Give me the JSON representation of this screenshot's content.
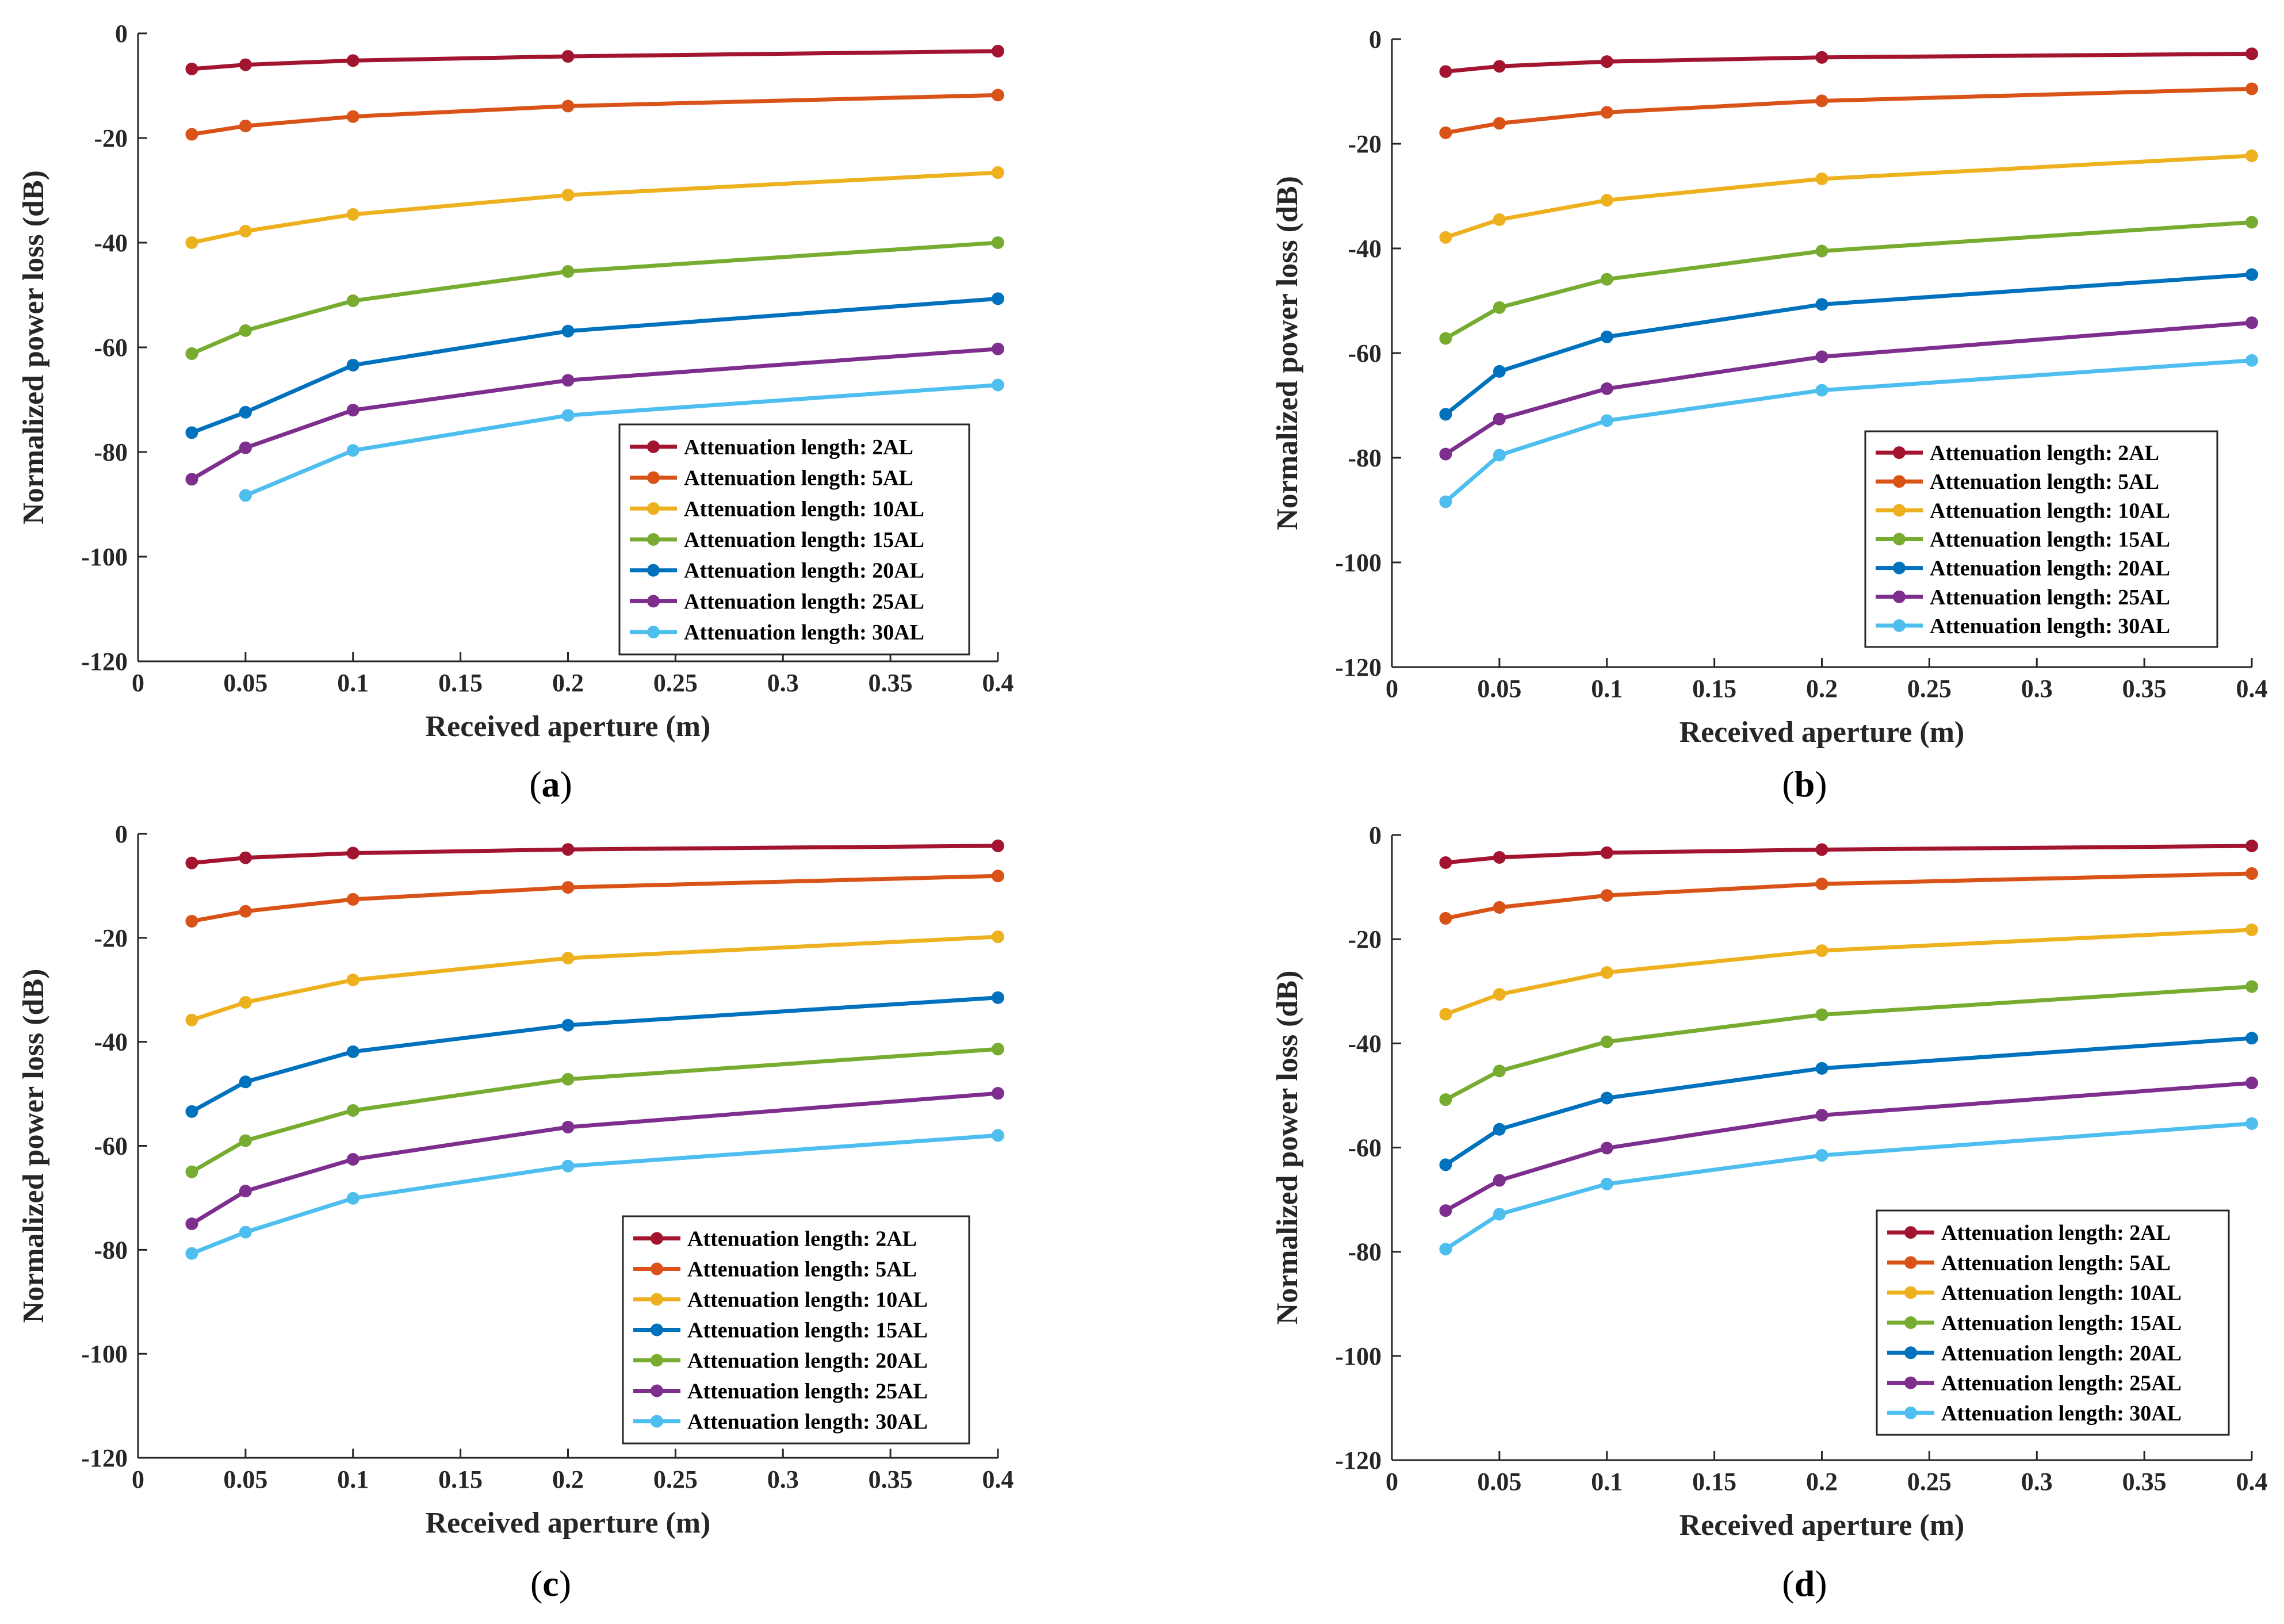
{
  "figure": {
    "colors": {
      "series": [
        "#A2142F",
        "#D95319",
        "#EDB120",
        "#77AC30",
        "#0072BD",
        "#7E2F8E",
        "#4DBEEE"
      ]
    }
  },
  "chart_data": [
    {
      "type": "line",
      "panel_label": "a",
      "xlabel": "Received aperture (m)",
      "ylabel": "Normalized power loss (dB)",
      "xlim": [
        0,
        0.4
      ],
      "ylim": [
        -120,
        0
      ],
      "xticks": [
        "0",
        "0.05",
        "0.1",
        "0.15",
        "0.2",
        "0.25",
        "0.3",
        "0.35",
        "0.4"
      ],
      "yticks": [
        "0",
        "-20",
        "-40",
        "-60",
        "-80",
        "-100",
        "-120"
      ],
      "legend_position": "bottom-right",
      "grid": false,
      "series": [
        {
          "name": "Attenuation length: 2AL",
          "color": "#A2142F",
          "x": [
            0.025,
            0.05,
            0.1,
            0.2,
            0.4
          ],
          "y": [
            -6.8,
            -6.0,
            -5.2,
            -4.4,
            -3.4
          ]
        },
        {
          "name": "Attenuation length: 5AL",
          "color": "#D95319",
          "x": [
            0.025,
            0.05,
            0.1,
            0.2,
            0.4
          ],
          "y": [
            -19.3,
            -17.7,
            -15.9,
            -13.9,
            -11.8
          ]
        },
        {
          "name": "Attenuation length: 10AL",
          "color": "#EDB120",
          "x": [
            0.025,
            0.05,
            0.1,
            0.2,
            0.4
          ],
          "y": [
            -40.0,
            -37.8,
            -34.6,
            -30.9,
            -26.6
          ]
        },
        {
          "name": "Attenuation length: 15AL",
          "color": "#77AC30",
          "x": [
            0.025,
            0.05,
            0.1,
            0.2,
            0.4
          ],
          "y": [
            -61.2,
            -56.8,
            -51.1,
            -45.5,
            -40.0
          ]
        },
        {
          "name": "Attenuation length: 20AL",
          "color": "#0072BD",
          "x": [
            0.025,
            0.05,
            0.1,
            0.2,
            0.4
          ],
          "y": [
            -76.3,
            -72.4,
            -63.4,
            -56.9,
            -50.7
          ]
        },
        {
          "name": "Attenuation length: 25AL",
          "color": "#7E2F8E",
          "x": [
            0.025,
            0.05,
            0.1,
            0.2,
            0.4
          ],
          "y": [
            -85.2,
            -79.2,
            -72.0,
            -66.3,
            -60.3
          ]
        },
        {
          "name": "Attenuation length: 30AL",
          "color": "#4DBEEE",
          "x": [
            0.05,
            0.1,
            0.2,
            0.4
          ],
          "y": [
            -88.3,
            -79.7,
            -73.0,
            -67.2
          ]
        }
      ]
    },
    {
      "type": "line",
      "panel_label": "b",
      "xlabel": "Received aperture (m)",
      "ylabel": "Normalized power loss (dB)",
      "xlim": [
        0,
        0.4
      ],
      "ylim": [
        -120,
        0
      ],
      "xticks": [
        "0",
        "0.05",
        "0.1",
        "0.15",
        "0.2",
        "0.25",
        "0.3",
        "0.35",
        "0.4"
      ],
      "yticks": [
        "0",
        "-20",
        "-40",
        "-60",
        "-80",
        "-100",
        "-120"
      ],
      "legend_position": "bottom-right",
      "grid": false,
      "series": [
        {
          "name": "Attenuation length: 2AL",
          "color": "#A2142F",
          "x": [
            0.025,
            0.05,
            0.1,
            0.2,
            0.4
          ],
          "y": [
            -6.2,
            -5.2,
            -4.3,
            -3.5,
            -2.8
          ]
        },
        {
          "name": "Attenuation length: 5AL",
          "color": "#D95319",
          "x": [
            0.025,
            0.05,
            0.1,
            0.2,
            0.4
          ],
          "y": [
            -17.9,
            -16.1,
            -14.0,
            -11.8,
            -9.5
          ]
        },
        {
          "name": "Attenuation length: 10AL",
          "color": "#EDB120",
          "x": [
            0.025,
            0.05,
            0.1,
            0.2,
            0.4
          ],
          "y": [
            -37.9,
            -34.5,
            -30.8,
            -26.7,
            -22.3
          ]
        },
        {
          "name": "Attenuation length: 15AL",
          "color": "#77AC30",
          "x": [
            0.025,
            0.05,
            0.1,
            0.2,
            0.4
          ],
          "y": [
            -57.2,
            -51.3,
            -45.9,
            -40.5,
            -35.0
          ]
        },
        {
          "name": "Attenuation length: 20AL",
          "color": "#0072BD",
          "x": [
            0.025,
            0.05,
            0.1,
            0.2,
            0.4
          ],
          "y": [
            -71.7,
            -63.5,
            -56.9,
            -50.7,
            -45.0
          ]
        },
        {
          "name": "Attenuation length: 25AL",
          "color": "#7E2F8E",
          "x": [
            0.025,
            0.05,
            0.1,
            0.2,
            0.4
          ],
          "y": [
            -79.3,
            -72.6,
            -66.8,
            -60.7,
            -54.2
          ]
        },
        {
          "name": "Attenuation length: 30AL",
          "color": "#4DBEEE",
          "x": [
            0.025,
            0.05,
            0.1,
            0.2,
            0.4
          ],
          "y": [
            -88.4,
            -79.5,
            -72.9,
            -67.1,
            -61.4
          ]
        }
      ]
    },
    {
      "type": "line",
      "panel_label": "c",
      "xlabel": "Received aperture (m)",
      "ylabel": "Normalized power loss (dB)",
      "xlim": [
        0,
        0.4
      ],
      "ylim": [
        -120,
        0
      ],
      "xticks": [
        "0",
        "0.05",
        "0.1",
        "0.15",
        "0.2",
        "0.25",
        "0.3",
        "0.35",
        "0.4"
      ],
      "yticks": [
        "0",
        "-20",
        "-40",
        "-60",
        "-80",
        "-100",
        "-120"
      ],
      "legend_position": "bottom-right",
      "grid": false,
      "series": [
        {
          "name": "Attenuation length: 2AL",
          "color": "#A2142F",
          "x": [
            0.025,
            0.05,
            0.1,
            0.2,
            0.4
          ],
          "y": [
            -5.6,
            -4.6,
            -3.7,
            -3.0,
            -2.3
          ]
        },
        {
          "name": "Attenuation length: 5AL",
          "color": "#D95319",
          "x": [
            0.025,
            0.05,
            0.1,
            0.2,
            0.4
          ],
          "y": [
            -16.8,
            -14.9,
            -12.6,
            -10.3,
            -8.1
          ]
        },
        {
          "name": "Attenuation length: 10AL",
          "color": "#EDB120",
          "x": [
            0.025,
            0.05,
            0.1,
            0.2,
            0.4
          ],
          "y": [
            -35.8,
            -32.4,
            -28.1,
            -23.9,
            -19.8
          ]
        },
        {
          "name": "Attenuation length: 15AL",
          "color": "#0072BD",
          "x": [
            0.025,
            0.05,
            0.1,
            0.2,
            0.4
          ],
          "y": [
            -53.4,
            -47.7,
            -41.9,
            -36.8,
            -31.5
          ]
        },
        {
          "name": "Attenuation length: 20AL",
          "color": "#77AC30",
          "x": [
            0.025,
            0.05,
            0.1,
            0.2,
            0.4
          ],
          "y": [
            -65.0,
            -59.0,
            -53.2,
            -47.2,
            -41.4
          ]
        },
        {
          "name": "Attenuation length: 25AL",
          "color": "#7E2F8E",
          "x": [
            0.025,
            0.05,
            0.1,
            0.2,
            0.4
          ],
          "y": [
            -75.0,
            -68.7,
            -62.6,
            -56.4,
            -49.9
          ]
        },
        {
          "name": "Attenuation length: 30AL",
          "color": "#4DBEEE",
          "x": [
            0.025,
            0.05,
            0.1,
            0.2,
            0.4
          ],
          "y": [
            -80.7,
            -76.6,
            -70.1,
            -63.9,
            -58.0
          ]
        }
      ]
    },
    {
      "type": "line",
      "panel_label": "d",
      "xlabel": "Received aperture (m)",
      "ylabel": "Normalized power loss (dB)",
      "xlim": [
        0,
        0.4
      ],
      "ylim": [
        -120,
        0
      ],
      "xticks": [
        "0",
        "0.05",
        "0.1",
        "0.15",
        "0.2",
        "0.25",
        "0.3",
        "0.35",
        "0.4"
      ],
      "yticks": [
        "0",
        "-20",
        "-40",
        "-60",
        "-80",
        "-100",
        "-120"
      ],
      "legend_position": "bottom-right",
      "grid": false,
      "series": [
        {
          "name": "Attenuation length: 2AL",
          "color": "#A2142F",
          "x": [
            0.025,
            0.05,
            0.1,
            0.2,
            0.4
          ],
          "y": [
            -5.3,
            -4.3,
            -3.4,
            -2.8,
            -2.1
          ]
        },
        {
          "name": "Attenuation length: 5AL",
          "color": "#D95319",
          "x": [
            0.025,
            0.05,
            0.1,
            0.2,
            0.4
          ],
          "y": [
            -16.0,
            -13.9,
            -11.6,
            -9.4,
            -7.4
          ]
        },
        {
          "name": "Attenuation length: 10AL",
          "color": "#EDB120",
          "x": [
            0.025,
            0.05,
            0.1,
            0.2,
            0.4
          ],
          "y": [
            -34.4,
            -30.6,
            -26.4,
            -22.2,
            -18.2
          ]
        },
        {
          "name": "Attenuation length: 15AL",
          "color": "#77AC30",
          "x": [
            0.025,
            0.05,
            0.1,
            0.2,
            0.4
          ],
          "y": [
            -50.8,
            -45.3,
            -39.7,
            -34.5,
            -29.1
          ]
        },
        {
          "name": "Attenuation length: 20AL",
          "color": "#0072BD",
          "x": [
            0.025,
            0.05,
            0.1,
            0.2,
            0.4
          ],
          "y": [
            -63.3,
            -56.5,
            -50.5,
            -44.8,
            -39.0
          ]
        },
        {
          "name": "Attenuation length: 25AL",
          "color": "#7E2F8E",
          "x": [
            0.025,
            0.05,
            0.1,
            0.2,
            0.4
          ],
          "y": [
            -72.1,
            -66.3,
            -60.1,
            -53.8,
            -47.6
          ]
        },
        {
          "name": "Attenuation length: 30AL",
          "color": "#4DBEEE",
          "x": [
            0.025,
            0.05,
            0.1,
            0.2,
            0.4
          ],
          "y": [
            -79.5,
            -72.8,
            -67.0,
            -61.5,
            -55.4
          ]
        }
      ]
    }
  ]
}
